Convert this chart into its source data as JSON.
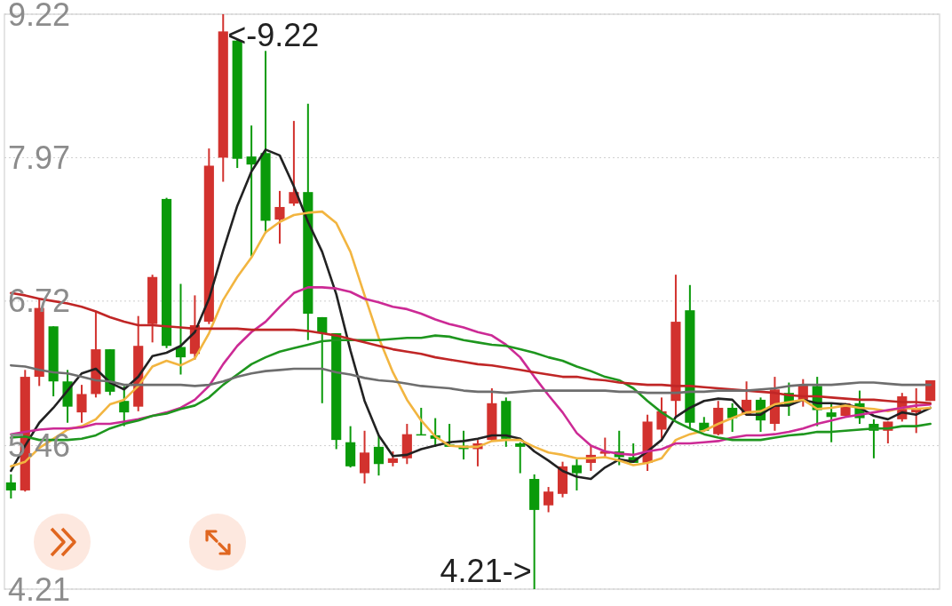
{
  "chart_data": {
    "type": "candlestick",
    "categories": [
      null,
      null,
      null,
      null,
      null,
      null,
      null,
      null,
      null,
      null,
      null,
      null,
      null,
      null,
      null,
      null,
      null,
      null,
      null,
      null,
      null,
      null,
      null,
      null,
      null,
      null,
      null,
      null,
      null,
      null,
      null,
      null,
      null,
      null,
      null,
      null,
      null,
      null,
      null,
      null,
      null,
      null,
      null,
      null,
      null,
      null,
      null,
      null,
      null,
      null,
      null,
      null,
      null,
      null,
      null,
      null,
      null,
      null,
      null,
      null,
      null,
      null,
      null,
      null,
      null,
      null
    ],
    "ohlc": [
      [
        5.14,
        5.21,
        5.0,
        5.07
      ],
      [
        5.07,
        6.12,
        5.06,
        6.06
      ],
      [
        6.06,
        6.75,
        5.98,
        6.66
      ],
      [
        6.5,
        6.5,
        5.89,
        6.02
      ],
      [
        6.02,
        6.12,
        5.66,
        5.8
      ],
      [
        5.75,
        5.99,
        5.66,
        5.91
      ],
      [
        5.91,
        6.63,
        5.88,
        6.3
      ],
      [
        6.3,
        6.3,
        5.9,
        5.93
      ],
      [
        5.85,
        5.98,
        5.63,
        5.75
      ],
      [
        5.8,
        6.59,
        5.76,
        6.33
      ],
      [
        6.52,
        6.95,
        6.36,
        6.93
      ],
      [
        7.61,
        7.62,
        6.31,
        6.33
      ],
      [
        6.32,
        6.87,
        6.08,
        6.23
      ],
      [
        6.26,
        6.77,
        6.21,
        6.51
      ],
      [
        6.54,
        8.05,
        6.52,
        7.9
      ],
      [
        7.97,
        9.22,
        7.76,
        9.07
      ],
      [
        8.99,
        9.0,
        7.88,
        7.96
      ],
      [
        7.98,
        8.25,
        7.11,
        7.91
      ],
      [
        8.01,
        8.9,
        7.31,
        7.42
      ],
      [
        7.43,
        7.68,
        7.22,
        7.54
      ],
      [
        7.57,
        8.29,
        7.55,
        7.67
      ],
      [
        7.67,
        8.44,
        6.38,
        6.61
      ],
      [
        6.58,
        6.58,
        5.83,
        6.44
      ],
      [
        6.44,
        6.44,
        5.43,
        5.51
      ],
      [
        5.49,
        5.63,
        5.27,
        5.28
      ],
      [
        5.22,
        5.59,
        5.13,
        5.4
      ],
      [
        5.45,
        5.55,
        5.2,
        5.3
      ],
      [
        5.31,
        5.41,
        5.28,
        5.35
      ],
      [
        5.35,
        5.65,
        5.3,
        5.56
      ],
      [
        5.56,
        5.79,
        5.55,
        5.55
      ],
      [
        5.55,
        5.7,
        5.45,
        5.52
      ],
      [
        5.47,
        5.65,
        5.45,
        5.45
      ],
      [
        5.46,
        5.59,
        5.34,
        5.43
      ],
      [
        5.43,
        5.51,
        5.28,
        5.48
      ],
      [
        5.51,
        5.96,
        5.5,
        5.83
      ],
      [
        5.85,
        5.88,
        5.45,
        5.52
      ],
      [
        5.48,
        5.49,
        5.22,
        5.45
      ],
      [
        5.17,
        5.21,
        4.21,
        4.9
      ],
      [
        4.94,
        5.1,
        4.88,
        5.06
      ],
      [
        5.04,
        5.32,
        5.01,
        5.28
      ],
      [
        5.29,
        5.34,
        5.07,
        5.22
      ],
      [
        5.31,
        5.46,
        5.24,
        5.38
      ],
      [
        5.39,
        5.53,
        5.35,
        5.41
      ],
      [
        5.41,
        5.59,
        5.29,
        5.36
      ],
      [
        5.36,
        5.48,
        5.31,
        5.31
      ],
      [
        5.31,
        5.73,
        5.24,
        5.67
      ],
      [
        5.6,
        5.88,
        5.52,
        5.76
      ],
      [
        5.85,
        6.95,
        5.71,
        6.54
      ],
      [
        6.64,
        6.86,
        5.61,
        5.66
      ],
      [
        5.66,
        5.71,
        5.58,
        5.59
      ],
      [
        5.56,
        5.85,
        5.55,
        5.79
      ],
      [
        5.79,
        5.83,
        5.58,
        5.7
      ],
      [
        5.73,
        6.02,
        5.72,
        5.86
      ],
      [
        5.86,
        5.88,
        5.58,
        5.68
      ],
      [
        5.65,
        6.06,
        5.59,
        5.95
      ],
      [
        5.92,
        6.01,
        5.72,
        5.82
      ],
      [
        5.86,
        6.04,
        5.8,
        5.99
      ],
      [
        5.98,
        6.06,
        5.63,
        5.77
      ],
      [
        5.75,
        5.83,
        5.49,
        5.71
      ],
      [
        5.72,
        5.83,
        5.72,
        5.83
      ],
      [
        5.83,
        5.94,
        5.65,
        5.7
      ],
      [
        5.65,
        5.69,
        5.35,
        5.59
      ],
      [
        5.59,
        5.67,
        5.48,
        5.67
      ],
      [
        5.69,
        5.92,
        5.67,
        5.89
      ],
      [
        5.75,
        5.96,
        5.57,
        5.79
      ],
      [
        5.85,
        6.03,
        5.85,
        6.03
      ]
    ],
    "colors": [
      "#0a9a0a",
      "#d2322e",
      "#d2322e",
      "#0a9a0a",
      "#0a9a0a",
      "#d2322e",
      "#d2322e",
      "#0a9a0a",
      "#0a9a0a",
      "#d2322e",
      "#d2322e",
      "#0a9a0a",
      "#0a9a0a",
      "#d2322e",
      "#d2322e",
      "#d2322e",
      "#0a9a0a",
      "#0a9a0a",
      "#0a9a0a",
      "#d2322e",
      "#d2322e",
      "#0a9a0a",
      "#0a9a0a",
      "#0a9a0a",
      "#0a9a0a",
      "#d2322e",
      "#0a9a0a",
      "#d2322e",
      "#d2322e",
      "#0a9a0a",
      "#0a9a0a",
      "#0a9a0a",
      "#0a9a0a",
      "#d2322e",
      "#d2322e",
      "#0a9a0a",
      "#0a9a0a",
      "#0a9a0a",
      "#d2322e",
      "#d2322e",
      "#0a9a0a",
      "#d2322e",
      "#d2322e",
      "#0a9a0a",
      "#0a9a0a",
      "#d2322e",
      "#d2322e",
      "#d2322e",
      "#0a9a0a",
      "#0a9a0a",
      "#d2322e",
      "#0a9a0a",
      "#d2322e",
      "#0a9a0a",
      "#d2322e",
      "#0a9a0a",
      "#d2322e",
      "#0a9a0a",
      "#0a9a0a",
      "#d2322e",
      "#0a9a0a",
      "#0a9a0a",
      "#d2322e",
      "#d2322e",
      "#d2322e",
      "#d2322e"
    ],
    "series": [
      {
        "type": "line",
        "color": "#222222",
        "values": [
          5.24,
          5.46,
          5.66,
          5.79,
          5.94,
          6.09,
          6.13,
          6.01,
          5.95,
          6.06,
          6.24,
          6.27,
          6.33,
          6.45,
          6.74,
          7.16,
          7.55,
          7.85,
          8.04,
          7.99,
          7.72,
          7.41,
          7.15,
          6.78,
          6.29,
          5.85,
          5.55,
          5.37,
          5.38,
          5.43,
          5.46,
          5.49,
          5.5,
          5.52,
          5.55,
          5.55,
          5.52,
          5.41,
          5.33,
          5.24,
          5.19,
          5.17,
          5.27,
          5.34,
          5.32,
          5.41,
          5.51,
          5.71,
          5.79,
          5.85,
          5.87,
          5.86,
          5.73,
          5.73,
          5.81,
          5.81,
          5.86,
          5.83,
          5.83,
          5.82,
          5.79,
          5.72,
          5.69,
          5.75,
          5.73,
          5.79
        ]
      },
      {
        "type": "line",
        "color": "#f2b540",
        "values": [
          5.28,
          5.32,
          5.44,
          5.52,
          5.6,
          5.63,
          5.69,
          5.82,
          5.86,
          5.98,
          6.15,
          6.2,
          6.16,
          6.22,
          6.44,
          6.73,
          6.93,
          7.1,
          7.32,
          7.41,
          7.47,
          7.49,
          7.5,
          7.4,
          7.15,
          6.77,
          6.4,
          6.1,
          5.86,
          5.68,
          5.54,
          5.46,
          5.45,
          5.45,
          5.5,
          5.51,
          5.51,
          5.45,
          5.4,
          5.38,
          5.35,
          5.35,
          5.36,
          5.33,
          5.29,
          5.31,
          5.35,
          5.51,
          5.56,
          5.59,
          5.65,
          5.7,
          5.75,
          5.76,
          5.82,
          5.84,
          5.86,
          5.78,
          5.79,
          5.81,
          5.79,
          5.78,
          5.76,
          5.79,
          5.78,
          5.79
        ]
      },
      {
        "type": "line",
        "color": "#cc2a95",
        "values": [
          5.56,
          5.58,
          5.6,
          5.61,
          5.61,
          5.62,
          5.65,
          5.65,
          5.67,
          5.69,
          5.72,
          5.75,
          5.79,
          5.86,
          5.98,
          6.17,
          6.33,
          6.45,
          6.54,
          6.67,
          6.79,
          6.84,
          6.84,
          6.83,
          6.8,
          6.74,
          6.71,
          6.67,
          6.65,
          6.61,
          6.56,
          6.52,
          6.49,
          6.45,
          6.42,
          6.34,
          6.23,
          6.06,
          5.9,
          5.75,
          5.57,
          5.46,
          5.41,
          5.39,
          5.38,
          5.41,
          5.43,
          5.48,
          5.48,
          5.49,
          5.5,
          5.53,
          5.55,
          5.55,
          5.56,
          5.58,
          5.61,
          5.65,
          5.68,
          5.71,
          5.73,
          5.75,
          5.77,
          5.79,
          5.81,
          5.82
        ]
      },
      {
        "type": "line",
        "color": "#1e961e",
        "values": [
          5.53,
          5.54,
          5.51,
          5.51,
          5.51,
          5.52,
          5.55,
          5.61,
          5.65,
          5.68,
          5.72,
          5.74,
          5.78,
          5.81,
          5.88,
          5.99,
          6.08,
          6.17,
          6.23,
          6.28,
          6.31,
          6.34,
          6.37,
          6.38,
          6.38,
          6.38,
          6.38,
          6.39,
          6.4,
          6.4,
          6.42,
          6.41,
          6.38,
          6.36,
          6.34,
          6.33,
          6.3,
          6.27,
          6.23,
          6.2,
          6.15,
          6.11,
          6.06,
          6.03,
          5.96,
          5.85,
          5.75,
          5.67,
          5.61,
          5.56,
          5.53,
          5.51,
          5.51,
          5.51,
          5.53,
          5.55,
          5.56,
          5.58,
          5.58,
          5.59,
          5.6,
          5.61,
          5.61,
          5.63,
          5.63,
          5.65
        ]
      },
      {
        "type": "line",
        "color": "#c02626",
        "values": [
          6.79,
          6.77,
          6.74,
          6.72,
          6.7,
          6.67,
          6.63,
          6.58,
          6.54,
          6.51,
          6.51,
          6.5,
          6.49,
          6.48,
          6.48,
          6.48,
          6.48,
          6.47,
          6.47,
          6.47,
          6.47,
          6.46,
          6.44,
          6.42,
          6.39,
          6.36,
          6.33,
          6.3,
          6.28,
          6.26,
          6.23,
          6.21,
          6.19,
          6.17,
          6.16,
          6.14,
          6.12,
          6.1,
          6.08,
          6.06,
          6.06,
          6.04,
          6.03,
          6.01,
          6.0,
          5.99,
          5.99,
          5.98,
          5.98,
          5.97,
          5.96,
          5.95,
          5.94,
          5.93,
          5.92,
          5.9,
          5.89,
          5.89,
          5.88,
          5.87,
          5.86,
          5.86,
          5.85,
          5.84,
          5.84,
          5.83
        ]
      },
      {
        "type": "line",
        "color": "#6e6e6e",
        "values": [
          6.16,
          6.15,
          6.12,
          6.1,
          6.09,
          6.06,
          6.03,
          6.02,
          5.99,
          5.99,
          5.99,
          5.99,
          5.99,
          5.98,
          5.99,
          6.02,
          6.06,
          6.09,
          6.11,
          6.12,
          6.13,
          6.13,
          6.13,
          6.1,
          6.08,
          6.05,
          6.03,
          6.02,
          6.0,
          5.98,
          5.97,
          5.96,
          5.94,
          5.93,
          5.93,
          5.92,
          5.93,
          5.94,
          5.94,
          5.94,
          5.94,
          5.94,
          5.94,
          5.93,
          5.93,
          5.92,
          5.92,
          5.92,
          5.93,
          5.93,
          5.94,
          5.94,
          5.94,
          5.95,
          5.96,
          5.98,
          5.99,
          5.99,
          5.99,
          6.0,
          6.01,
          6.01,
          6.0,
          5.99,
          5.99,
          5.99
        ]
      }
    ],
    "ylim": [
      4.21,
      9.22
    ],
    "yticks": [
      9.22,
      7.97,
      6.72,
      5.46,
      4.21
    ],
    "grid": "y",
    "tick_labels": "y",
    "annotations": [
      "<-9.22",
      "4.21->"
    ]
  }
}
